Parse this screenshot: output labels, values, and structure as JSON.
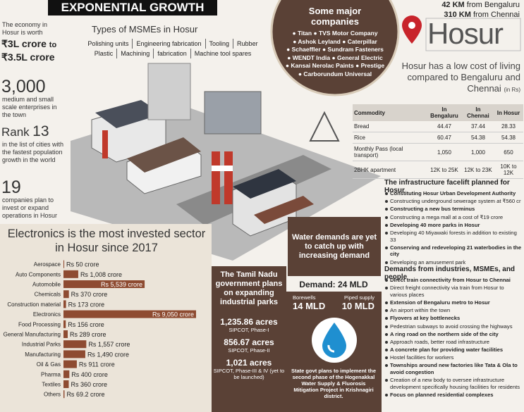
{
  "header": {
    "title": "EXPONENTIAL GROWTH"
  },
  "stats": {
    "economy_text": "The economy in Hosur is worth",
    "economy_low": "₹3L crore",
    "economy_connector": "to",
    "economy_high": "₹3.5L crore",
    "enterprises": "3,000",
    "enterprises_text": "medium and small scale enterprises in the town",
    "rank_label": "Rank",
    "rank": "13",
    "rank_text": "in the list of cities with the fastest population growth in the world",
    "companies": "19",
    "companies_text": "companies plan to invest or expand operations in Hosur"
  },
  "msme": {
    "title": "Types of MSMEs in Hosur",
    "items": [
      "Polishing units",
      "Engineering fabrication",
      "Tooling",
      "Rubber",
      "Plastic",
      "Machining",
      "fabrication",
      "Machine tool spares"
    ]
  },
  "companies": {
    "title": "Some major companies",
    "items": [
      "Titan",
      "TVS Motor Company",
      "Ashok Leyland",
      "Caterpillar",
      "Schaeffler",
      "Sundram Fasteners",
      "WENDT India",
      "General Electric",
      "Kansai Nerolac Paints",
      "Prestige",
      "Carborundum Universal"
    ]
  },
  "location": {
    "distance_1": "42 KM",
    "distance_1_text": "from Bengaluru",
    "distance_2": "310 KM",
    "distance_2_text": "from Chennai",
    "title": "Hosur",
    "subtitle": "Hosur has a low cost of living compared to Bengaluru and Chennai",
    "unit": "(in Rs)"
  },
  "cost_table": {
    "header": [
      "Commodity",
      "In Bengaluru",
      "In Chennai",
      "In Hosur"
    ],
    "rows": [
      [
        "Bread",
        "44.47",
        "37.44",
        "28.33"
      ],
      [
        "Rice",
        "60.47",
        "54.38",
        "54.38"
      ],
      [
        "Monthly Pass (local transport)",
        "1,050",
        "1,000",
        "650"
      ],
      [
        "2BHK apartment",
        "12K to 25K",
        "12K to 23K",
        "10K to 12K"
      ]
    ]
  },
  "infrastructure": {
    "title": "The infrastructure facelift planned for Hosur",
    "items": [
      {
        "text": "Constituting Hosur Urban Development Authority",
        "bold": true
      },
      {
        "text": "Constructing underground sewerage system at ₹560 cr",
        "bold": false
      },
      {
        "text": "Constructing a new bus terminus",
        "bold": true
      },
      {
        "text": "Constructing a mega mall at a cost of ₹19 crore",
        "bold": false
      },
      {
        "text": "Developing 40 more parks in Hosur",
        "bold": true
      },
      {
        "text": "Developing 40 Miyawaki forests in addition to existing 33",
        "bold": false
      },
      {
        "text": "Conserving and redeveloping 21 waterbodies in the city",
        "bold": true
      },
      {
        "text": "Developing an amusement park",
        "bold": false
      }
    ]
  },
  "demands": {
    "title": "Demands from industries, MSMEs, and people",
    "items": [
      {
        "text": "Direct train connectivity from Hosur to Chennai",
        "bold": true
      },
      {
        "text": "Direct freight connectivity via train from Hosur to various places",
        "bold": false
      },
      {
        "text": "Extension of Bengaluru metro to Hosur",
        "bold": true
      },
      {
        "text": "An airport within the town",
        "bold": false
      },
      {
        "text": "Flyovers at key bottlenecks",
        "bold": true
      },
      {
        "text": "Pedestrian subways to avoid crossing the highways",
        "bold": false
      },
      {
        "text": "A ring road on the northern side of the city",
        "bold": true
      },
      {
        "text": "Approach roads, better road infrastructure",
        "bold": false
      },
      {
        "text": "A concrete plan for providing water facilities",
        "bold": true
      },
      {
        "text": "Hostel facilities for workers",
        "bold": false
      },
      {
        "text": "Townships around new factories like Tata & Ola to avoid congestion",
        "bold": true
      },
      {
        "text": "Creation of a new body to oversee infrastructure development specifically housing facilities for residents",
        "bold": false
      },
      {
        "text": "Focus on planned residential complexes",
        "bold": true
      }
    ]
  },
  "chart_data": {
    "type": "barh",
    "title": "Electronics is the most invested sector in Hosur since 2017",
    "categories": [
      "Aerospace",
      "Auto Components",
      "Automobile",
      "Chemicals",
      "Construction material",
      "Electronics",
      "Food Processing",
      "General Manufacturing",
      "Industrial Parks",
      "Manufacturing",
      "Oil & Gas",
      "Pharma",
      "Textiles",
      "Others"
    ],
    "values": [
      50,
      1008,
      5539,
      370,
      173,
      9050,
      156,
      289,
      1557,
      1490,
      911,
      400,
      360,
      69.2
    ],
    "value_labels": [
      "Rs 50 crore",
      "Rs 1,008 crore",
      "Rs 5,539 crore",
      "Rs 370 crore",
      "Rs 173 crore",
      "Rs 9,050 crore",
      "Rs 156 crore",
      "Rs 289 crore",
      "Rs 1,557 crore",
      "Rs 1,490 crore",
      "Rs 911 crore",
      "Rs 400 crore",
      "Rs 360 crore",
      "Rs 69.2 crore"
    ],
    "color": "#8e4b31"
  },
  "industrial_parks": {
    "title": "The Tamil Nadu government plans on expanding industrial parks",
    "items": [
      {
        "area": "1,235.86 acres",
        "label": "SIPCOT, Phase-I"
      },
      {
        "area": "856.67 acres",
        "label": "SIPCOT, Phase-II"
      },
      {
        "area": "1,021 acres",
        "label": "SIPCOT, Phase-III & IV (yet to be launched)"
      }
    ]
  },
  "water": {
    "title": "Water demands are yet to catch up with increasing demand",
    "demand": "Demand: 24 MLD",
    "source_1_label": "Borewells",
    "source_1_value": "14 MLD",
    "source_2_label": "Piped supply",
    "source_2_value": "10 MLD",
    "note": "State govt plans to implement the second phase of the Hogenakkal Water Supply & Fluorosis Mitigation Project in Krishnagiri district."
  }
}
